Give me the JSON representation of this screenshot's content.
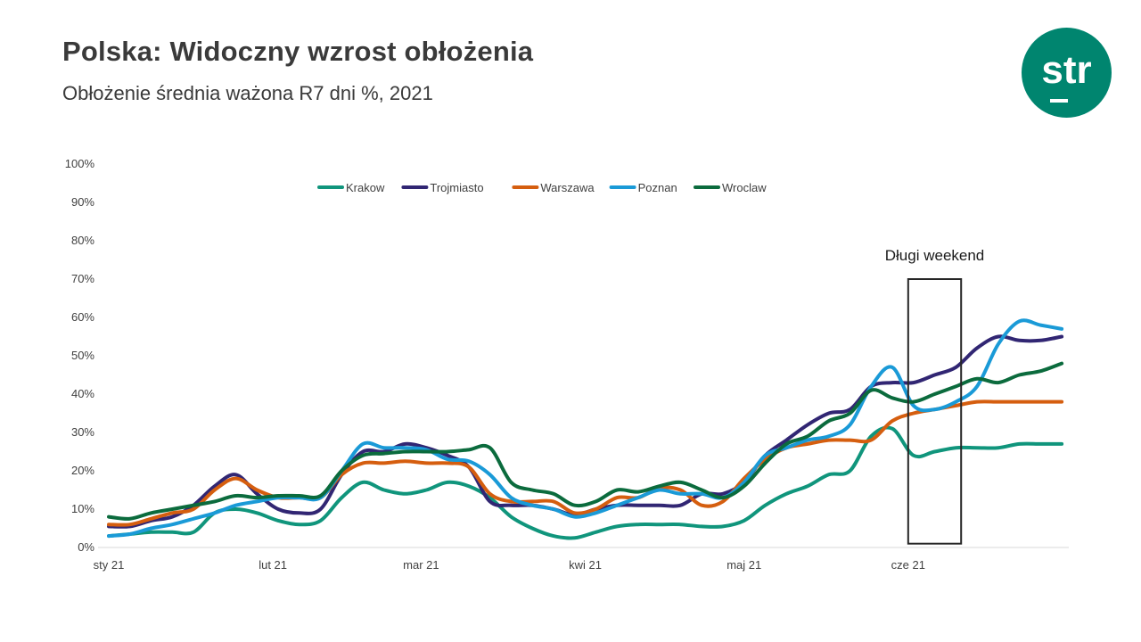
{
  "header": {
    "title": "Polska: Widoczny wzrost obłożenia",
    "subtitle": "Obłożenie średnia ważona R7 dni %, 2021"
  },
  "logo": {
    "text": "str",
    "color": "#00856f"
  },
  "chart_data": {
    "type": "line",
    "x": [
      1,
      5,
      9,
      13,
      17,
      21,
      25,
      29,
      33,
      37,
      41,
      45,
      49,
      53,
      57,
      61,
      65,
      69,
      73,
      77,
      81,
      85,
      89,
      93,
      97,
      101,
      105,
      109,
      113,
      117,
      121,
      125,
      129,
      133,
      137,
      141,
      145,
      149,
      153,
      157,
      161,
      165,
      169,
      173,
      177,
      181
    ],
    "xlim": [
      1,
      182
    ],
    "x_ticks": [
      {
        "label": "sty 21",
        "x": 1
      },
      {
        "label": "lut 21",
        "x": 32
      },
      {
        "label": "mar 21",
        "x": 60
      },
      {
        "label": "kwi 21",
        "x": 91
      },
      {
        "label": "maj 21",
        "x": 121
      },
      {
        "label": "cze 21",
        "x": 152
      }
    ],
    "ylim": [
      0,
      100
    ],
    "y_ticks": [
      "0%",
      "10%",
      "20%",
      "30%",
      "40%",
      "50%",
      "60%",
      "70%",
      "80%",
      "90%",
      "100%"
    ],
    "grid": false,
    "legend_position": "top",
    "series": [
      {
        "name": "Krakow",
        "color": "#10957c",
        "values": [
          3,
          3.5,
          4,
          4,
          4,
          9,
          10,
          9,
          7,
          6,
          7,
          13,
          17,
          15,
          14,
          15,
          17,
          16,
          13,
          8,
          5,
          3,
          2.5,
          4,
          5.5,
          6,
          6,
          6,
          5.5,
          5.5,
          7,
          11,
          14,
          16,
          19,
          20,
          29,
          31,
          24,
          25,
          26,
          26,
          26,
          27,
          27,
          27
        ]
      },
      {
        "name": "Trojmiasto",
        "color": "#312673",
        "values": [
          5.5,
          5.5,
          7,
          8,
          11,
          16,
          19,
          14,
          10,
          9,
          10,
          19,
          25,
          25,
          27,
          26,
          24,
          21,
          12,
          11,
          11,
          10,
          8.5,
          10,
          11,
          11,
          11,
          11,
          14,
          14,
          17,
          24,
          28,
          32,
          35,
          36,
          42,
          43,
          43,
          45,
          47,
          52,
          55,
          54,
          54,
          55
        ]
      },
      {
        "name": "Warszawa",
        "color": "#d55e0f",
        "values": [
          6,
          6,
          7.5,
          9,
          10,
          15,
          18,
          15,
          13,
          13,
          13,
          19,
          22,
          22,
          22.5,
          22,
          22,
          21,
          14,
          12,
          12,
          12,
          9,
          10,
          13,
          13,
          15.5,
          15,
          11,
          12,
          18,
          23,
          26,
          27,
          28,
          28,
          28,
          33,
          35,
          36,
          37,
          38,
          38,
          38,
          38,
          38
        ]
      },
      {
        "name": "Poznan",
        "color": "#1a9ad7",
        "values": [
          3,
          3.5,
          5,
          6,
          7.5,
          9,
          11,
          12,
          13,
          13,
          13,
          20,
          27,
          26,
          26,
          25.5,
          23,
          22.5,
          19,
          13,
          11,
          10,
          8,
          9,
          11,
          13,
          15,
          14,
          14,
          13,
          17,
          24,
          26,
          28,
          29,
          32,
          42,
          47,
          37,
          36,
          38,
          42,
          53,
          59,
          58,
          57
        ]
      },
      {
        "name": "Wroclaw",
        "color": "#0b6b3d",
        "values": [
          8,
          7.5,
          9,
          10,
          11,
          12,
          13.5,
          13,
          13.5,
          13.5,
          13.5,
          20,
          24,
          24.5,
          25,
          25,
          25,
          25.5,
          26,
          17,
          15,
          14,
          11,
          12,
          15,
          14.5,
          16,
          17,
          15,
          13,
          16,
          22,
          27,
          29,
          33,
          35,
          41,
          39,
          38,
          40,
          42,
          44,
          43,
          45,
          46,
          48
        ]
      }
    ],
    "annotation": {
      "label": "Długi weekend",
      "x_start": 152,
      "x_end": 162
    }
  }
}
